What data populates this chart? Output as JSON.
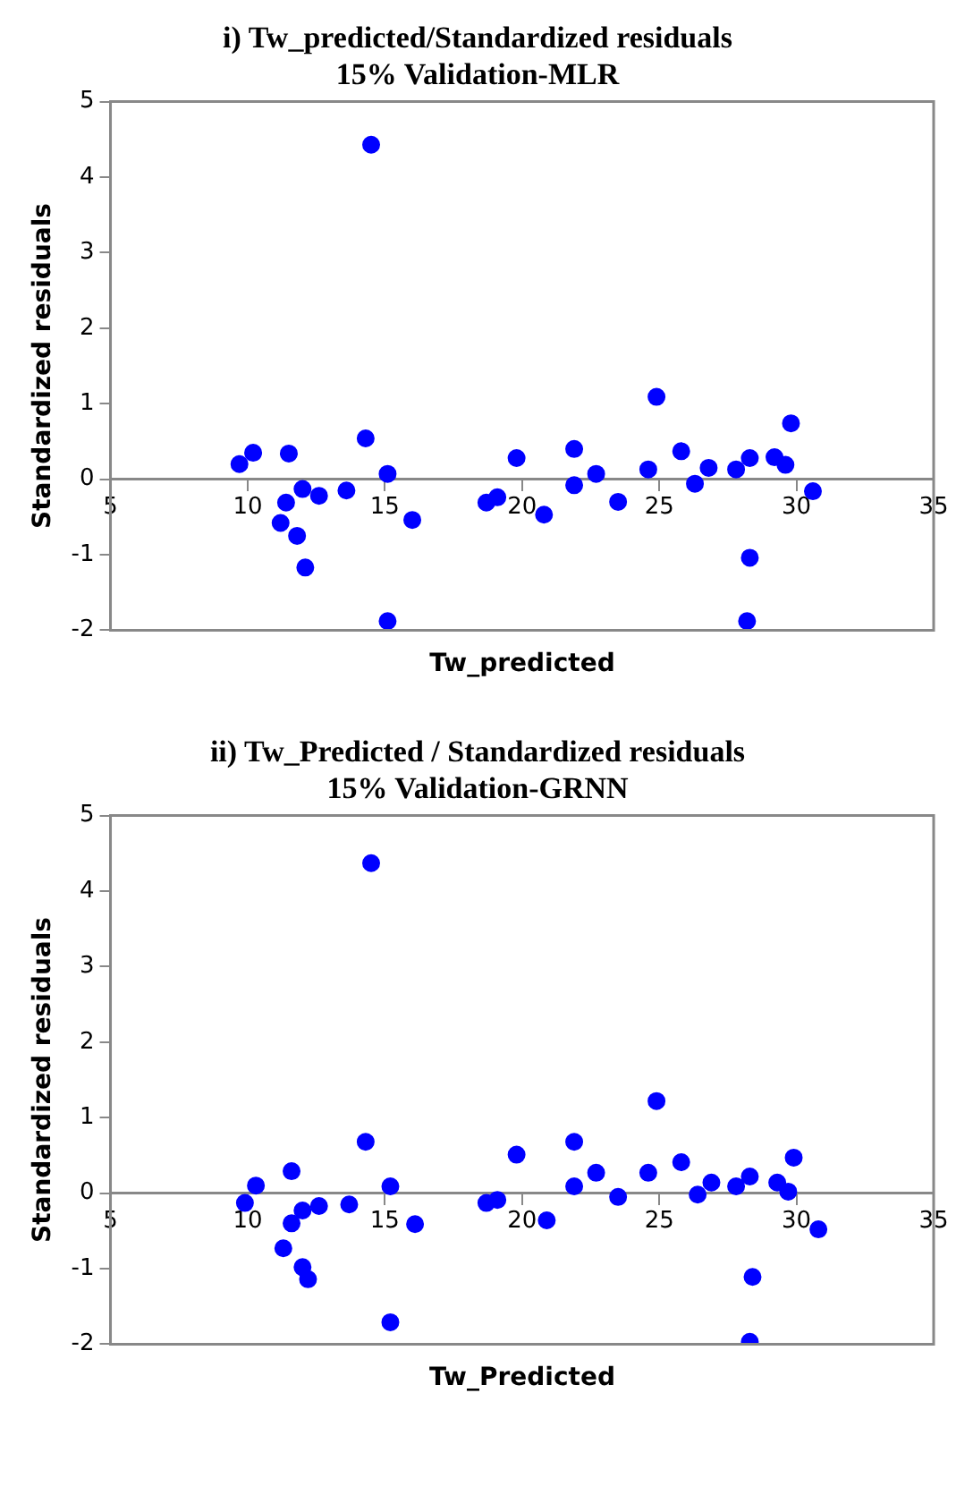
{
  "chart_data": [
    {
      "type": "scatter",
      "title": "i) Tw_predicted/Standardized residuals\n15% Validation-MLR",
      "xlabel": "Tw_predicted",
      "ylabel": "Standardized residuals",
      "xlim": [
        5,
        35
      ],
      "xticks": [
        5,
        10,
        15,
        20,
        25,
        30,
        35
      ],
      "ylim": [
        -2,
        5
      ],
      "yticks": [
        -2,
        -1,
        0,
        1,
        2,
        3,
        4,
        5
      ],
      "grid": false,
      "legend": false,
      "marker": "circle",
      "series": [
        {
          "color": "#0000ff",
          "x": [
            9.7,
            10.2,
            11.5,
            11.4,
            11.2,
            12.0,
            11.8,
            12.1,
            12.6,
            13.6,
            14.3,
            14.5,
            15.1,
            15.1,
            16.0,
            18.7,
            19.1,
            19.8,
            20.8,
            21.9,
            21.9,
            22.7,
            23.5,
            24.6,
            24.9,
            25.8,
            26.3,
            26.8,
            27.8,
            28.3,
            28.3,
            28.2,
            29.2,
            29.6,
            29.8,
            30.6
          ],
          "values": [
            0.2,
            0.35,
            0.34,
            -0.31,
            -0.58,
            -0.13,
            -0.75,
            -1.17,
            -0.22,
            -0.15,
            0.54,
            4.43,
            0.07,
            -1.88,
            -0.54,
            -0.31,
            -0.24,
            0.28,
            -0.47,
            0.4,
            -0.08,
            0.07,
            -0.3,
            0.13,
            1.09,
            0.37,
            -0.06,
            0.15,
            0.13,
            0.28,
            -1.04,
            -1.88,
            0.29,
            0.19,
            0.74,
            -0.16
          ]
        }
      ]
    },
    {
      "type": "scatter",
      "title": "ii) Tw_Predicted / Standardized residuals\n15% Validation-GRNN",
      "xlabel": "Tw_Predicted",
      "ylabel": "Standardized residuals",
      "xlim": [
        5,
        35
      ],
      "xticks": [
        5,
        10,
        15,
        20,
        25,
        30,
        35
      ],
      "ylim": [
        -2,
        5
      ],
      "yticks": [
        -2,
        -1,
        0,
        1,
        2,
        3,
        4,
        5
      ],
      "grid": false,
      "legend": false,
      "marker": "circle",
      "series": [
        {
          "color": "#0000ff",
          "x": [
            9.9,
            10.3,
            11.6,
            11.6,
            11.3,
            12.0,
            12.0,
            12.2,
            12.6,
            13.7,
            14.3,
            14.5,
            15.2,
            15.2,
            16.1,
            18.7,
            19.1,
            19.8,
            20.9,
            21.9,
            21.9,
            22.7,
            23.5,
            24.6,
            24.9,
            25.8,
            26.4,
            26.9,
            27.8,
            28.3,
            28.4,
            28.3,
            29.3,
            29.7,
            29.9,
            30.8
          ],
          "values": [
            -0.13,
            0.1,
            0.29,
            -0.4,
            -0.73,
            -0.23,
            -0.98,
            -1.14,
            -0.17,
            -0.15,
            0.68,
            4.37,
            0.09,
            -1.71,
            -0.41,
            -0.13,
            -0.09,
            0.51,
            -0.36,
            0.68,
            0.09,
            0.27,
            -0.05,
            0.27,
            1.22,
            0.41,
            -0.02,
            0.14,
            0.09,
            0.22,
            -1.11,
            -1.97,
            0.14,
            0.02,
            0.47,
            -0.48
          ]
        }
      ]
    }
  ]
}
